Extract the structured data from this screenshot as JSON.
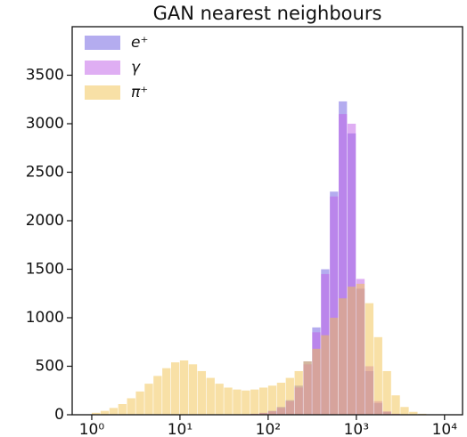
{
  "chart_data": {
    "type": "histogram",
    "title": "GAN nearest neighbours",
    "log_x": true,
    "xlim": [
      0.6,
      16000
    ],
    "ylim": [
      0,
      4000
    ],
    "xticks": [
      {
        "value": 1,
        "label": "10⁰"
      },
      {
        "value": 10,
        "label": "10¹"
      },
      {
        "value": 100,
        "label": "10²"
      },
      {
        "value": 1000,
        "label": "10³"
      },
      {
        "value": 10000,
        "label": "10⁴"
      }
    ],
    "yticks": [
      0,
      500,
      1000,
      1500,
      2000,
      2500,
      3000,
      3500
    ],
    "legend": "upper left",
    "bins": [
      1,
      1.259,
      1.585,
      1.995,
      2.512,
      3.162,
      3.981,
      5.012,
      6.31,
      7.943,
      10,
      12.59,
      15.85,
      19.95,
      25.12,
      31.62,
      39.81,
      50.12,
      63.1,
      79.43,
      100,
      125.9,
      158.5,
      199.5,
      251.2,
      316.2,
      398.1,
      501.2,
      631,
      794.3,
      1000,
      1259,
      1585,
      1995,
      2512,
      3162,
      3981,
      5012,
      6310,
      7943,
      10000
    ],
    "series": [
      {
        "name": "e⁺",
        "color": "#6a5ae0",
        "values": [
          0,
          0,
          0,
          0,
          0,
          0,
          0,
          0,
          0,
          0,
          0,
          0,
          0,
          0,
          0,
          0,
          2,
          5,
          10,
          20,
          40,
          80,
          150,
          300,
          550,
          900,
          1500,
          2300,
          3230,
          2900,
          1300,
          450,
          120,
          30,
          8,
          0,
          0,
          0,
          0,
          0
        ]
      },
      {
        "name": "γ",
        "color": "#c05ee8",
        "values": [
          0,
          0,
          0,
          0,
          0,
          0,
          0,
          0,
          0,
          0,
          0,
          0,
          0,
          0,
          0,
          0,
          2,
          4,
          9,
          18,
          35,
          70,
          140,
          280,
          520,
          850,
          1450,
          2250,
          3100,
          3000,
          1400,
          500,
          140,
          35,
          10,
          0,
          0,
          0,
          0,
          0
        ]
      },
      {
        "name": "π⁺",
        "color": "#f2c24e",
        "values": [
          20,
          40,
          70,
          110,
          170,
          240,
          320,
          400,
          480,
          540,
          560,
          520,
          450,
          380,
          320,
          280,
          260,
          250,
          260,
          280,
          300,
          330,
          380,
          450,
          550,
          680,
          820,
          1000,
          1200,
          1320,
          1350,
          1150,
          800,
          450,
          200,
          80,
          30,
          10,
          0,
          0
        ]
      }
    ]
  }
}
